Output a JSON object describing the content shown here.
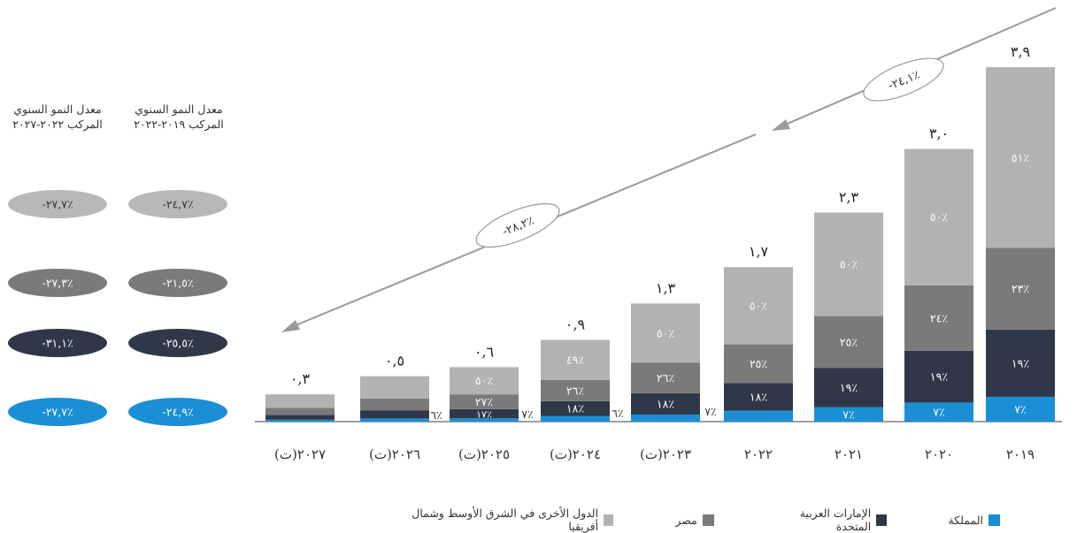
{
  "colors": {
    "ksa": "#1a8fd6",
    "uae": "#2f3849",
    "egypt": "#7a7a7a",
    "other": "#b2b2b2",
    "axis": "#666666",
    "arrow": "#9a9a9a"
  },
  "legend": [
    {
      "label": "المملكة",
      "color": "#1a8fd6"
    },
    {
      "label": "الإمارات العربية المتحدة",
      "color": "#2f3849"
    },
    {
      "label": "مصر",
      "color": "#7a7a7a"
    },
    {
      "label": "الدول الأخرى في الشرق الأوسط وشمال أفريقيا",
      "color": "#b2b2b2"
    }
  ],
  "cagr": {
    "col1_header": "معدل النمو السنوي المركب ٢٠١٩-٢٠٢٢",
    "col2_header": "معدل النمو السنوي المركب ٢٠٢٢-٢٠٢٧",
    "rows": [
      {
        "series": "other",
        "col1": "-٢٤,٧٪",
        "col2": "-٢٧,٧٪",
        "color": "#b8b8b8",
        "text_color": "#333333"
      },
      {
        "series": "egypt",
        "col1": "-٢١,٥٪",
        "col2": "-٢٧,٣٪",
        "color": "#7a7a7a",
        "text_color": "#ffffff"
      },
      {
        "series": "uae",
        "col1": "-٢٥,٥٪",
        "col2": "-٣١,١٪",
        "color": "#2f3849",
        "text_color": "#ffffff"
      },
      {
        "series": "ksa",
        "col1": "-٢٤,٩٪",
        "col2": "-٢٧,٧٪",
        "color": "#1a8fd6",
        "text_color": "#ffffff"
      }
    ]
  },
  "arrows": [
    {
      "label": "-٢٤,١٪",
      "from": "٢٠١٩",
      "to": "٢٠٢٢"
    },
    {
      "label": "-٢٨,٢٪",
      "from": "٢٠٢٢",
      "to": "٢٠٢٧(ت)"
    }
  ],
  "chart_data": {
    "type": "bar",
    "stacked": true,
    "title": "",
    "xlabel": "",
    "ylabel": "",
    "ylim": [
      0,
      4.1
    ],
    "grid": false,
    "legend_position": "bottom",
    "categories": [
      "٢٠١٩",
      "٢٠٢٠",
      "٢٠٢١",
      "٢٠٢٢",
      "٢٠٢٣(ت)",
      "٢٠٢٤(ت)",
      "٢٠٢٥(ت)",
      "٢٠٢٦(ت)",
      "٢٠٢٧(ت)"
    ],
    "totals": [
      3.9,
      3.0,
      2.3,
      1.7,
      1.3,
      0.9,
      0.6,
      0.5,
      0.3
    ],
    "total_labels": [
      "٣,٩",
      "٣,٠",
      "٢,٣",
      "١,٧",
      "١,٣",
      "٠,٩",
      "٠,٦",
      "٠,٥",
      "٠,٣"
    ],
    "series": [
      {
        "name": "المملكة",
        "key": "ksa",
        "share_pct": [
          7,
          7,
          7,
          7,
          6,
          7,
          6,
          7,
          7
        ],
        "labels": [
          "٧٪",
          "٧٪",
          "٧٪",
          "٧٪",
          "٦٪",
          "٧٪",
          "٦٪",
          "",
          ""
        ]
      },
      {
        "name": "الإمارات العربية المتحدة",
        "key": "uae",
        "share_pct": [
          19,
          19,
          19,
          18,
          18,
          18,
          17,
          18,
          18
        ],
        "labels": [
          "١٩٪",
          "١٩٪",
          "١٩٪",
          "١٨٪",
          "١٨٪",
          "١٨٪",
          "١٧٪",
          "",
          ""
        ]
      },
      {
        "name": "مصر",
        "key": "egypt",
        "share_pct": [
          23,
          24,
          25,
          25,
          26,
          26,
          27,
          26,
          26
        ],
        "labels": [
          "٢٣٪",
          "٢٤٪",
          "٢٥٪",
          "٢٥٪",
          "٢٦٪",
          "٢٦٪",
          "٢٧٪",
          "",
          ""
        ]
      },
      {
        "name": "الدول الأخرى في الشرق الأوسط وشمال أفريقيا",
        "key": "other",
        "share_pct": [
          51,
          50,
          50,
          50,
          50,
          49,
          50,
          49,
          49
        ],
        "labels": [
          "٥١٪",
          "٥٠٪",
          "٥٠٪",
          "٥٠٪",
          "٥٠٪",
          "٤٩٪",
          "٥٠٪",
          "",
          ""
        ]
      }
    ]
  }
}
